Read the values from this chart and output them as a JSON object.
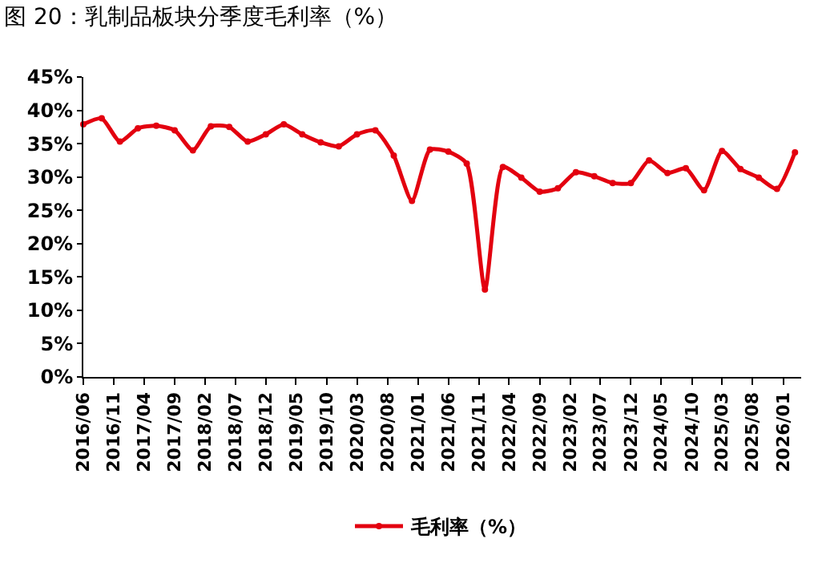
{
  "chart_data": {
    "type": "line",
    "title": "图 20：乳制品板块分季度毛利率（%）",
    "x": [
      "2016-06",
      "2016-09",
      "2016-12",
      "2017-03",
      "2017-06",
      "2017-09",
      "2017-12",
      "2018-03",
      "2018-06",
      "2018-09",
      "2018-12",
      "2019-03",
      "2019-06",
      "2019-09",
      "2019-12",
      "2020-03",
      "2020-06",
      "2020-09",
      "2020-12",
      "2021-03",
      "2021-06",
      "2021-09",
      "2021-12",
      "2022-03",
      "2022-06",
      "2022-09",
      "2022-12",
      "2023-03",
      "2023-06",
      "2023-09",
      "2023-12",
      "2024-03",
      "2024-06",
      "2024-09",
      "2024-12",
      "2025-03",
      "2025-06",
      "2025-09",
      "2025-12",
      "2026-03"
    ],
    "series": [
      {
        "name": "毛利率（%）",
        "color": "#e3000f",
        "values": [
          37.9,
          38.8,
          35.3,
          37.3,
          37.7,
          37.0,
          34.0,
          37.6,
          37.5,
          35.3,
          36.4,
          37.9,
          36.4,
          35.2,
          34.6,
          36.4,
          37.0,
          33.2,
          26.4,
          34.1,
          33.8,
          32.0,
          13.1,
          31.5,
          29.9,
          27.8,
          28.3,
          30.7,
          30.1,
          29.1,
          29.1,
          32.5,
          30.6,
          31.3,
          28.0,
          33.9,
          31.2,
          29.9,
          28.2,
          33.7
        ]
      }
    ],
    "xlim": [
      "2016-06",
      "2026-04"
    ],
    "xticks": [
      {
        "value": "2016-06",
        "label": "2016/06"
      },
      {
        "value": "2016-11",
        "label": "2016/11"
      },
      {
        "value": "2017-04",
        "label": "2017/04"
      },
      {
        "value": "2017-09",
        "label": "2017/09"
      },
      {
        "value": "2018-02",
        "label": "2018/02"
      },
      {
        "value": "2018-07",
        "label": "2018/07"
      },
      {
        "value": "2018-12",
        "label": "2018/12"
      },
      {
        "value": "2019-05",
        "label": "2019/05"
      },
      {
        "value": "2019-10",
        "label": "2019/10"
      },
      {
        "value": "2020-03",
        "label": "2020/03"
      },
      {
        "value": "2020-08",
        "label": "2020/08"
      },
      {
        "value": "2021-01",
        "label": "2021/01"
      },
      {
        "value": "2021-06",
        "label": "2021/06"
      },
      {
        "value": "2021-11",
        "label": "2021/11"
      },
      {
        "value": "2022-04",
        "label": "2022/04"
      },
      {
        "value": "2022-09",
        "label": "2022/09"
      },
      {
        "value": "2023-02",
        "label": "2023/02"
      },
      {
        "value": "2023-07",
        "label": "2023/07"
      },
      {
        "value": "2023-12",
        "label": "2023/12"
      },
      {
        "value": "2024-05",
        "label": "2024/05"
      },
      {
        "value": "2024-10",
        "label": "2024/10"
      },
      {
        "value": "2025-03",
        "label": "2025/03"
      },
      {
        "value": "2025-08",
        "label": "2025/08"
      },
      {
        "value": "2026-01",
        "label": "2026/01"
      }
    ],
    "ylim": [
      0,
      45
    ],
    "yticks": [
      {
        "value": 0,
        "label": "0%"
      },
      {
        "value": 5,
        "label": "5%"
      },
      {
        "value": 10,
        "label": "10%"
      },
      {
        "value": 15,
        "label": "15%"
      },
      {
        "value": 20,
        "label": "20%"
      },
      {
        "value": 25,
        "label": "25%"
      },
      {
        "value": 30,
        "label": "30%"
      },
      {
        "value": 35,
        "label": "35%"
      },
      {
        "value": 40,
        "label": "40%"
      },
      {
        "value": 45,
        "label": "45%"
      }
    ],
    "legend": "bottom",
    "marker": "circle",
    "line_style": "solid"
  }
}
